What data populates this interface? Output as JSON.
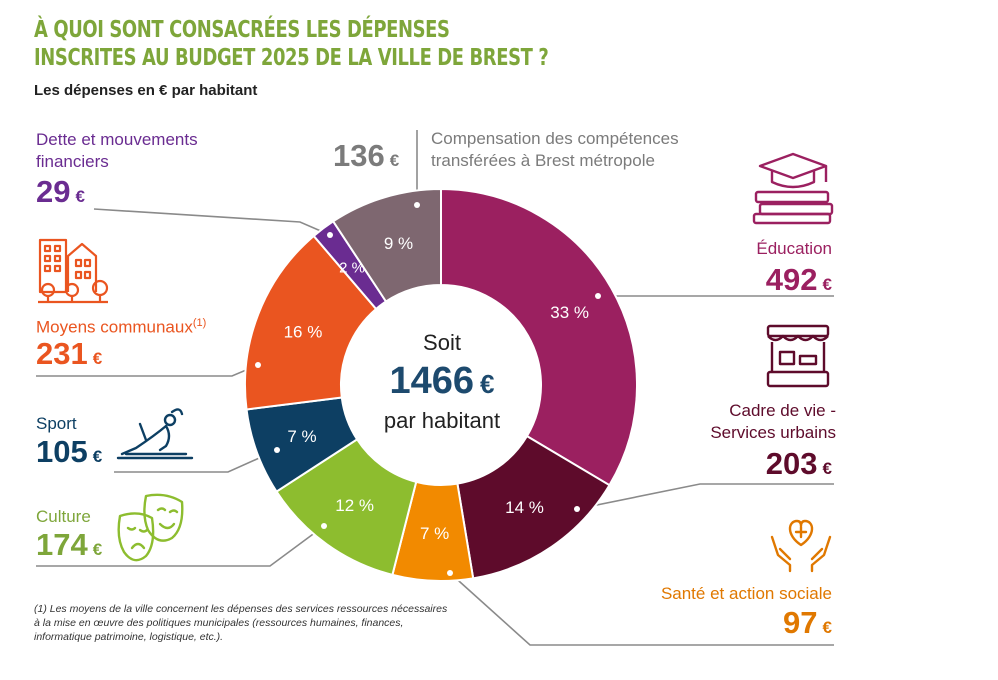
{
  "title_line1": "À quoi sont consacrées les dépenses",
  "title_line2": "inscrites au budget 2025 de la ville de Brest ?",
  "subtitle": "Les dépenses en € par habitant",
  "center": {
    "soit": "Soit",
    "total": "1466",
    "currency": "€",
    "unit": "par habitant"
  },
  "footnote": "(1) Les moyens de la ville concernent les dépenses des services ressources nécessaires à la mise en œuvre des politiques municipales (ressources humaines, finances, informatique patrimoine, logistique, etc.).",
  "chart_data": {
    "type": "pie",
    "variant": "donut",
    "title": "À quoi sont consacrées les dépenses inscrites au budget 2025 de la ville de Brest ?",
    "unit": "€ par habitant",
    "total": 1466,
    "slices": [
      {
        "name": "Éducation",
        "value": 492,
        "percent": "33 %",
        "color": "#9b2060",
        "label_color": "#9b2060"
      },
      {
        "name": "Cadre de vie - Services urbains",
        "value": 203,
        "percent": "14 %",
        "color": "#5e0b2b",
        "label_color": "#5e0b2b"
      },
      {
        "name": "Santé et action sociale",
        "value": 97,
        "percent": "7 %",
        "color": "#f28a00",
        "label_color": "#e07800"
      },
      {
        "name": "Culture",
        "value": 174,
        "percent": "12 %",
        "color": "#8dbd2f",
        "label_color": "#7ea63a"
      },
      {
        "name": "Sport",
        "value": 105,
        "percent": "7 %",
        "color": "#0d3f63",
        "label_color": "#0d3f63"
      },
      {
        "name": "Moyens communaux",
        "footnote_ref": "(1)",
        "value": 231,
        "percent": "16 %",
        "color": "#ea5520",
        "label_color": "#ea5520"
      },
      {
        "name": "Dette et mouvements financiers",
        "value": 29,
        "percent": "2 %",
        "color": "#6a2c91",
        "label_color": "#6a2c91"
      },
      {
        "name": "Compensation des compétences transférées à Brest métropole",
        "value": 136,
        "percent": "9 %",
        "color": "#7e6770",
        "label_color": "#7b7b7b"
      }
    ]
  },
  "labels": {
    "education": {
      "name": "Éducation",
      "value": "492",
      "currency": "€"
    },
    "cadre": {
      "line1": "Cadre de vie -",
      "line2": "Services urbains",
      "value": "203",
      "currency": "€"
    },
    "sante": {
      "name": "Santé et action sociale",
      "value": "97",
      "currency": "€"
    },
    "culture": {
      "name": "Culture",
      "value": "174",
      "currency": "€"
    },
    "sport": {
      "name": "Sport",
      "value": "105",
      "currency": "€"
    },
    "moyens": {
      "name": "Moyens communaux",
      "sup": "(1)",
      "value": "231",
      "currency": "€"
    },
    "dette": {
      "line1": "Dette et mouvements",
      "line2": "financiers",
      "value": "29",
      "currency": "€"
    },
    "compensation": {
      "line1": "Compensation des compétences",
      "line2": "transférées à Brest métropole",
      "value": "136",
      "currency": "€"
    }
  },
  "icons": {
    "education": "graduation-cap-books-icon",
    "cadre": "market-stall-icon",
    "sante": "hands-heart-icon",
    "culture": "theater-masks-icon",
    "sport": "gymnast-icon",
    "moyens": "city-buildings-icon"
  }
}
